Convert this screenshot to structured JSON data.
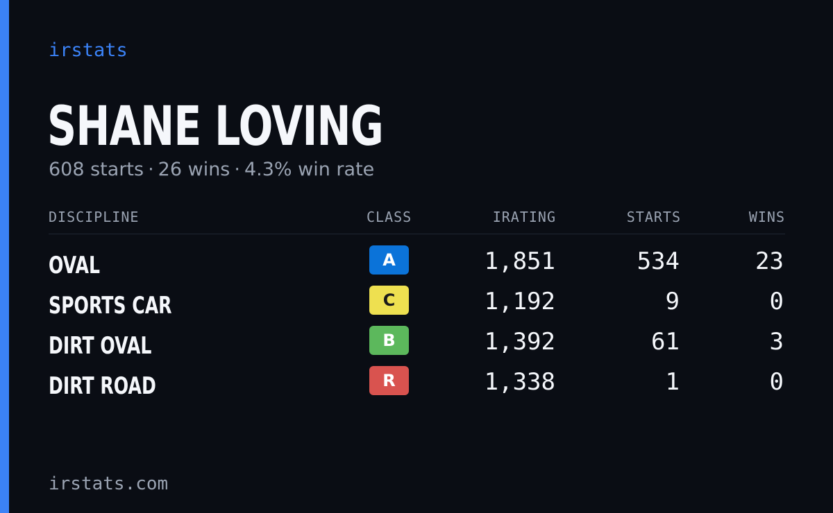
{
  "brand": "irstats",
  "player": {
    "name": "SHANE LOVING",
    "starts_text": "608 starts",
    "wins_text": "26 wins",
    "win_rate_text": "4.3% win rate",
    "separator": "·"
  },
  "table": {
    "headers": {
      "discipline": "DISCIPLINE",
      "class": "CLASS",
      "irating": "IRATING",
      "starts": "STARTS",
      "wins": "WINS"
    },
    "rows": [
      {
        "discipline": "OVAL",
        "class": "A",
        "class_bg": "#0b73d9",
        "class_fg": "#ffffff",
        "irating": "1,851",
        "starts": "534",
        "wins": "23"
      },
      {
        "discipline": "SPORTS CAR",
        "class": "C",
        "class_bg": "#eee050",
        "class_fg": "#1a1a1a",
        "irating": "1,192",
        "starts": "9",
        "wins": "0"
      },
      {
        "discipline": "DIRT OVAL",
        "class": "B",
        "class_bg": "#5cb85c",
        "class_fg": "#ffffff",
        "irating": "1,392",
        "starts": "61",
        "wins": "3"
      },
      {
        "discipline": "DIRT ROAD",
        "class": "R",
        "class_bg": "#d9534f",
        "class_fg": "#ffffff",
        "irating": "1,338",
        "starts": "1",
        "wins": "0"
      }
    ]
  },
  "footer": "irstats.com",
  "colors": {
    "background": "#0a0d14",
    "accent": "#3b82f6",
    "text_primary": "#f5f7fb",
    "text_muted": "#9aa3b2"
  }
}
